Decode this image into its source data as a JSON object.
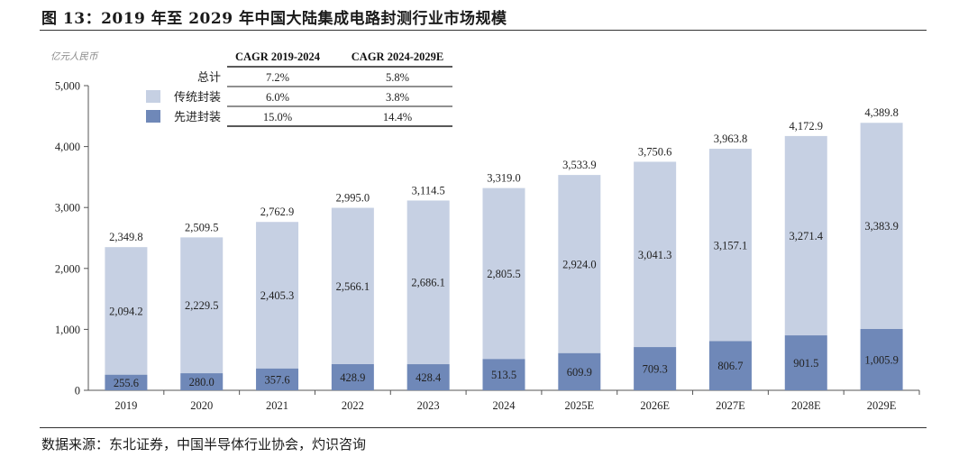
{
  "title": "图 13：2019 年至 2029 年中国大陆集成电路封测行业市场规模",
  "source": "数据来源：东北证券，中国半导体行业协会，灼识咨询",
  "colors": {
    "traditional": "#c6d0e3",
    "advanced": "#6f88b8",
    "axis": "#555555"
  },
  "chart_data": {
    "type": "bar",
    "stacked": true,
    "unit": "亿元人民币",
    "categories": [
      "2019",
      "2020",
      "2021",
      "2022",
      "2023",
      "2024",
      "2025E",
      "2026E",
      "2027E",
      "2028E",
      "2029E"
    ],
    "series": [
      {
        "name": "先进封装",
        "values": [
          255.6,
          280.0,
          357.6,
          428.9,
          428.4,
          513.5,
          609.9,
          709.3,
          806.7,
          901.5,
          1005.9
        ]
      },
      {
        "name": "传统封装",
        "values": [
          2094.2,
          2229.5,
          2405.3,
          2566.1,
          2686.1,
          2805.5,
          2924.0,
          3041.3,
          3157.1,
          3271.4,
          3383.9
        ]
      }
    ],
    "totals": [
      2349.8,
      2509.5,
      2762.9,
      2995.0,
      3114.5,
      3319.0,
      3533.9,
      3750.6,
      3963.8,
      4172.9,
      4389.8
    ],
    "segment_labels": {
      "advanced": [
        "255.6",
        "280.0",
        "357.6",
        "428.9",
        "428.4",
        "513.5",
        "609.9",
        "709.3",
        "806.7",
        "901.5",
        "1,005.9"
      ],
      "traditional": [
        "2,094.2",
        "2,229.5",
        "2,405.3",
        "2,566.1",
        "2,686.1",
        "2,805.5",
        "2,924.0",
        "3,041.3",
        "3,157.1",
        "3,271.4",
        "3,383.9"
      ],
      "totals": [
        "2,349.8",
        "2,509.5",
        "2,762.9",
        "2,995.0",
        "3,114.5",
        "3,319.0",
        "3,533.9",
        "3,750.6",
        "3,963.8",
        "4,172.9",
        "4,389.8"
      ]
    },
    "ylim": [
      0,
      5000
    ],
    "yticks": [
      0,
      1000,
      2000,
      3000,
      4000,
      5000
    ],
    "ytick_labels": [
      "0",
      "1,000",
      "2,000",
      "3,000",
      "4,000",
      "5,000"
    ],
    "legend_placement": "top-left",
    "cagr_table": {
      "headers": [
        "CAGR 2019-2024",
        "CAGR 2024-2029E"
      ],
      "rows": [
        {
          "label": "总计",
          "values": [
            "7.2%",
            "5.8%"
          ]
        },
        {
          "label": "传统封装",
          "values": [
            "6.0%",
            "3.8%"
          ]
        },
        {
          "label": "先进封装",
          "values": [
            "15.0%",
            "14.4%"
          ]
        }
      ]
    }
  }
}
